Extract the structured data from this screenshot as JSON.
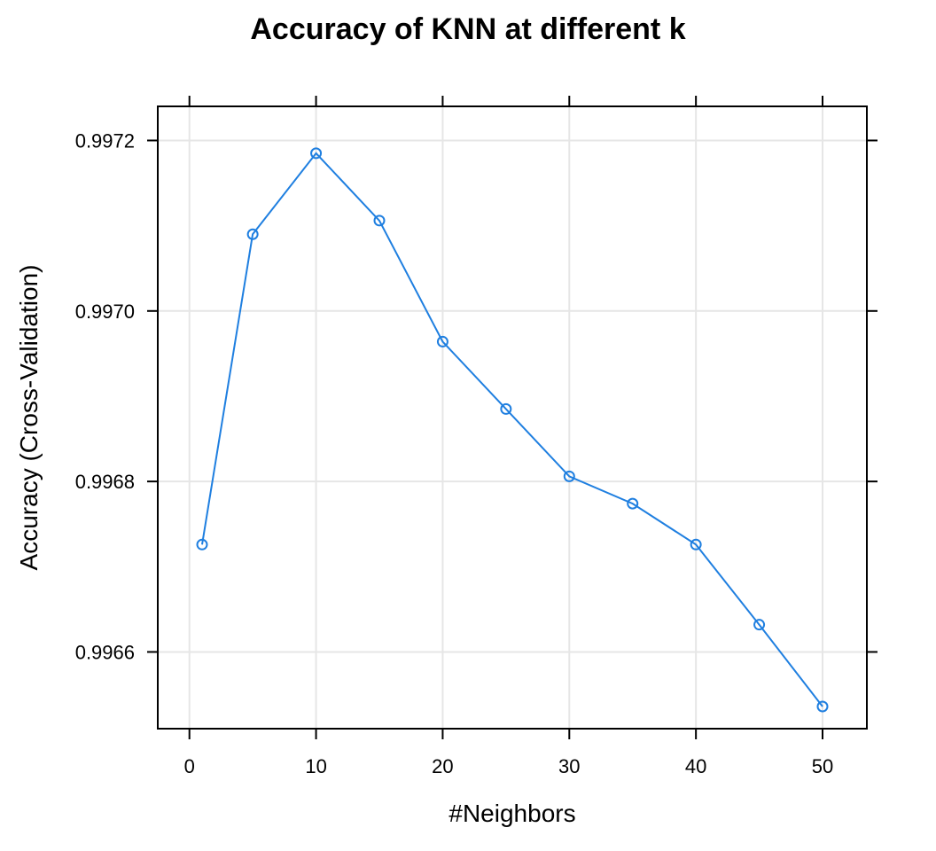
{
  "chart_data": {
    "type": "line",
    "title": "Accuracy of KNN at different k",
    "xlabel": "#Neighbors",
    "ylabel": "Accuracy (Cross-Validation)",
    "xlim": [
      -2.5,
      53.5
    ],
    "ylim": [
      0.99651,
      0.99724
    ],
    "xticks": [
      0,
      10,
      20,
      30,
      40,
      50
    ],
    "yticks": [
      0.9966,
      0.9968,
      0.997,
      0.9972
    ],
    "ytick_labels": [
      "0.9966",
      "0.9968",
      "0.9970",
      "0.9972"
    ],
    "grid": true,
    "series": [
      {
        "color": "#1f7fe0",
        "x": [
          1,
          5,
          10,
          15,
          20,
          25,
          30,
          35,
          40,
          45,
          50
        ],
        "y": [
          0.996726,
          0.99709,
          0.997185,
          0.997106,
          0.996964,
          0.996885,
          0.996806,
          0.996774,
          0.996726,
          0.996632,
          0.996536
        ]
      }
    ]
  }
}
